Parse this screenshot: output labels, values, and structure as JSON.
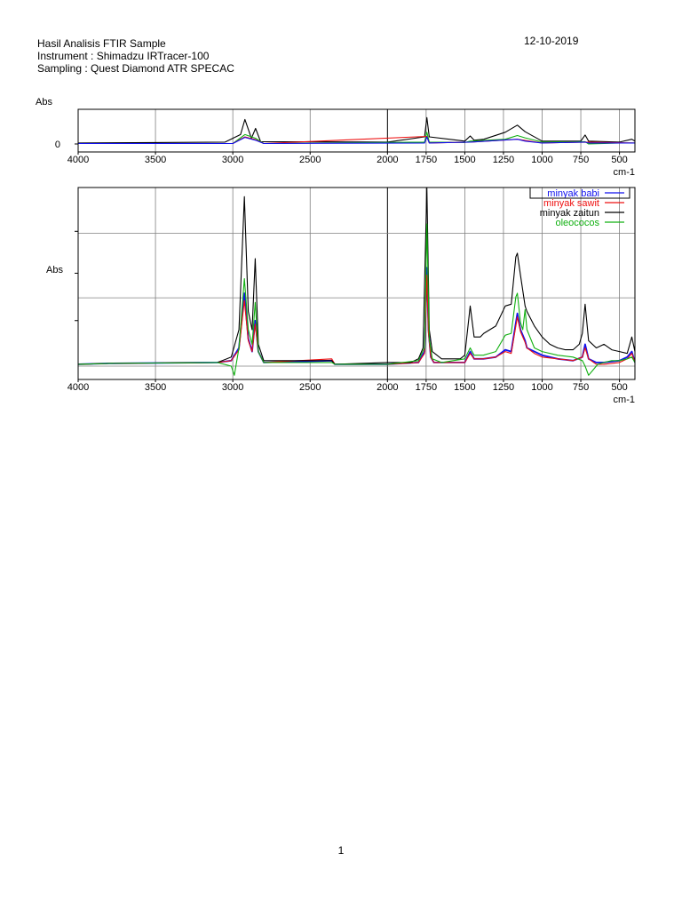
{
  "header": {
    "title": "Hasil Analisis FTIR Sample",
    "instrument": "Instrument : Shimadzu IRTracer-100",
    "sampling": "Sampling : Quest Diamond ATR SPECAC",
    "date": "12-10-2019"
  },
  "footer": {
    "page_number": "1"
  },
  "colors": {
    "minyak_babi": "#1010ee",
    "minyak_sawit": "#ee1010",
    "minyak_zaitun": "#000000",
    "oleococos": "#10b010",
    "grid": "#808080"
  },
  "chart_data": [
    {
      "type": "line",
      "ylabel": "Abs",
      "xlabel": "cm-1",
      "xlim": [
        4000,
        400
      ],
      "x_reversed": true,
      "x_ticks": [
        "4000",
        "3500",
        "3000",
        "2500",
        "2000",
        "1750",
        "1500",
        "1250",
        "1000",
        "750",
        "500"
      ],
      "y_ticks": [
        "0"
      ],
      "grid": true,
      "legend": false,
      "series": [
        {
          "key": "minyak_zaitun",
          "points": [
            [
              4000,
              0.02
            ],
            [
              3500,
              0.03
            ],
            [
              3050,
              0.04
            ],
            [
              2950,
              0.2
            ],
            [
              2922,
              0.52
            ],
            [
              2880,
              0.12
            ],
            [
              2853,
              0.33
            ],
            [
              2820,
              0.05
            ],
            [
              2000,
              0.04
            ],
            [
              1760,
              0.15
            ],
            [
              1745,
              0.56
            ],
            [
              1730,
              0.15
            ],
            [
              1500,
              0.06
            ],
            [
              1465,
              0.17
            ],
            [
              1440,
              0.08
            ],
            [
              1377,
              0.1
            ],
            [
              1238,
              0.25
            ],
            [
              1160,
              0.4
            ],
            [
              1110,
              0.26
            ],
            [
              1000,
              0.06
            ],
            [
              750,
              0.06
            ],
            [
              722,
              0.19
            ],
            [
              700,
              0.06
            ],
            [
              500,
              0.04
            ],
            [
              420,
              0.1
            ],
            [
              400,
              0.06
            ]
          ]
        },
        {
          "key": "oleococos",
          "points": [
            [
              4000,
              0.01
            ],
            [
              3000,
              0.01
            ],
            [
              2922,
              0.2
            ],
            [
              2853,
              0.12
            ],
            [
              2800,
              0.01
            ],
            [
              1760,
              0.04
            ],
            [
              1745,
              0.25
            ],
            [
              1730,
              0.04
            ],
            [
              1500,
              0.03
            ],
            [
              1465,
              0.06
            ],
            [
              1238,
              0.1
            ],
            [
              1160,
              0.18
            ],
            [
              1110,
              0.13
            ],
            [
              1000,
              0.04
            ],
            [
              722,
              0.05
            ],
            [
              700,
              0.0
            ],
            [
              500,
              0.02
            ],
            [
              400,
              0.02
            ]
          ]
        },
        {
          "key": "minyak_sawit",
          "points": [
            [
              4000,
              0.01
            ],
            [
              3000,
              0.01
            ],
            [
              2922,
              0.15
            ],
            [
              2853,
              0.09
            ],
            [
              2800,
              0.01
            ],
            [
              1745,
              0.16
            ],
            [
              1730,
              0.02
            ],
            [
              1465,
              0.04
            ],
            [
              1160,
              0.1
            ],
            [
              1000,
              0.02
            ],
            [
              722,
              0.04
            ],
            [
              400,
              0.02
            ]
          ]
        },
        {
          "key": "minyak_babi",
          "points": [
            [
              4000,
              0.01
            ],
            [
              3000,
              0.01
            ],
            [
              2922,
              0.14
            ],
            [
              2853,
              0.08
            ],
            [
              2800,
              0.01
            ],
            [
              1760,
              0.02
            ],
            [
              1745,
              0.15
            ],
            [
              1730,
              0.02
            ],
            [
              1465,
              0.04
            ],
            [
              1160,
              0.1
            ],
            [
              1110,
              0.06
            ],
            [
              1000,
              0.02
            ],
            [
              722,
              0.04
            ],
            [
              700,
              0.02
            ],
            [
              400,
              0.02
            ]
          ]
        }
      ]
    },
    {
      "type": "line",
      "ylabel": "Abs",
      "xlabel": "cm-1",
      "xlim": [
        4000,
        400
      ],
      "x_reversed": true,
      "x_ticks": [
        "4000",
        "3500",
        "3000",
        "2500",
        "2000",
        "1750",
        "1500",
        "1250",
        "1000",
        "750",
        "500"
      ],
      "grid": true,
      "legend": true,
      "legend_position": "top-right",
      "series": [
        {
          "key": "minyak_babi",
          "name": "minyak babi",
          "points": [
            [
              4000,
              0.01
            ],
            [
              3800,
              0.015
            ],
            [
              3100,
              0.02
            ],
            [
              3010,
              0.03
            ],
            [
              2960,
              0.1
            ],
            [
              2925,
              0.4
            ],
            [
              2900,
              0.15
            ],
            [
              2875,
              0.08
            ],
            [
              2855,
              0.25
            ],
            [
              2835,
              0.08
            ],
            [
              2800,
              0.02
            ],
            [
              2360,
              0.03
            ],
            [
              2340,
              0.01
            ],
            [
              2000,
              0.01
            ],
            [
              1800,
              0.02
            ],
            [
              1760,
              0.08
            ],
            [
              1745,
              0.54
            ],
            [
              1735,
              0.2
            ],
            [
              1720,
              0.05
            ],
            [
              1700,
              0.02
            ],
            [
              1500,
              0.02
            ],
            [
              1465,
              0.08
            ],
            [
              1440,
              0.04
            ],
            [
              1380,
              0.04
            ],
            [
              1300,
              0.05
            ],
            [
              1238,
              0.09
            ],
            [
              1200,
              0.08
            ],
            [
              1160,
              0.29
            ],
            [
              1140,
              0.2
            ],
            [
              1110,
              0.14
            ],
            [
              1098,
              0.1
            ],
            [
              1050,
              0.08
            ],
            [
              1000,
              0.06
            ],
            [
              900,
              0.04
            ],
            [
              800,
              0.03
            ],
            [
              740,
              0.05
            ],
            [
              722,
              0.12
            ],
            [
              700,
              0.04
            ],
            [
              650,
              0.02
            ],
            [
              600,
              0.02
            ],
            [
              500,
              0.03
            ],
            [
              450,
              0.05
            ],
            [
              420,
              0.08
            ],
            [
              400,
              0.02
            ]
          ]
        },
        {
          "key": "minyak_sawit",
          "name": "minyak sawit",
          "points": [
            [
              4000,
              0.01
            ],
            [
              3800,
              0.015
            ],
            [
              3100,
              0.02
            ],
            [
              3010,
              0.03
            ],
            [
              2960,
              0.09
            ],
            [
              2925,
              0.36
            ],
            [
              2900,
              0.14
            ],
            [
              2875,
              0.08
            ],
            [
              2855,
              0.23
            ],
            [
              2835,
              0.08
            ],
            [
              2800,
              0.02
            ],
            [
              2360,
              0.04
            ],
            [
              2340,
              0.01
            ],
            [
              2000,
              0.01
            ],
            [
              1800,
              0.02
            ],
            [
              1760,
              0.07
            ],
            [
              1745,
              0.5
            ],
            [
              1735,
              0.18
            ],
            [
              1720,
              0.05
            ],
            [
              1700,
              0.02
            ],
            [
              1500,
              0.02
            ],
            [
              1465,
              0.07
            ],
            [
              1440,
              0.04
            ],
            [
              1380,
              0.04
            ],
            [
              1300,
              0.05
            ],
            [
              1238,
              0.08
            ],
            [
              1200,
              0.07
            ],
            [
              1160,
              0.27
            ],
            [
              1140,
              0.19
            ],
            [
              1110,
              0.13
            ],
            [
              1098,
              0.1
            ],
            [
              1050,
              0.07
            ],
            [
              1000,
              0.05
            ],
            [
              900,
              0.04
            ],
            [
              800,
              0.03
            ],
            [
              740,
              0.05
            ],
            [
              722,
              0.1
            ],
            [
              700,
              0.04
            ],
            [
              650,
              0.01
            ],
            [
              600,
              0.01
            ],
            [
              500,
              0.02
            ],
            [
              450,
              0.04
            ],
            [
              420,
              0.07
            ],
            [
              400,
              0.02
            ]
          ]
        },
        {
          "key": "minyak_zaitun",
          "name": "minyak zaitun",
          "points": [
            [
              4000,
              0.01
            ],
            [
              3800,
              0.015
            ],
            [
              3100,
              0.02
            ],
            [
              3010,
              0.05
            ],
            [
              2960,
              0.2
            ],
            [
              2925,
              0.93
            ],
            [
              2900,
              0.3
            ],
            [
              2875,
              0.2
            ],
            [
              2855,
              0.59
            ],
            [
              2835,
              0.12
            ],
            [
              2800,
              0.03
            ],
            [
              2360,
              0.03
            ],
            [
              2340,
              0.01
            ],
            [
              2000,
              0.02
            ],
            [
              1850,
              0.02
            ],
            [
              1800,
              0.04
            ],
            [
              1770,
              0.1
            ],
            [
              1745,
              0.98
            ],
            [
              1730,
              0.2
            ],
            [
              1710,
              0.08
            ],
            [
              1650,
              0.04
            ],
            [
              1600,
              0.04
            ],
            [
              1530,
              0.04
            ],
            [
              1500,
              0.06
            ],
            [
              1465,
              0.33
            ],
            [
              1440,
              0.16
            ],
            [
              1400,
              0.16
            ],
            [
              1377,
              0.18
            ],
            [
              1300,
              0.22
            ],
            [
              1238,
              0.33
            ],
            [
              1200,
              0.34
            ],
            [
              1170,
              0.6
            ],
            [
              1160,
              0.62
            ],
            [
              1140,
              0.5
            ],
            [
              1110,
              0.33
            ],
            [
              1098,
              0.3
            ],
            [
              1050,
              0.22
            ],
            [
              1000,
              0.16
            ],
            [
              950,
              0.12
            ],
            [
              900,
              0.1
            ],
            [
              850,
              0.09
            ],
            [
              800,
              0.09
            ],
            [
              760,
              0.12
            ],
            [
              740,
              0.18
            ],
            [
              722,
              0.34
            ],
            [
              700,
              0.14
            ],
            [
              650,
              0.1
            ],
            [
              600,
              0.12
            ],
            [
              550,
              0.09
            ],
            [
              500,
              0.08
            ],
            [
              450,
              0.07
            ],
            [
              420,
              0.16
            ],
            [
              400,
              0.08
            ]
          ]
        },
        {
          "key": "oleococos",
          "name": "oleococos",
          "points": [
            [
              4000,
              0.01
            ],
            [
              3800,
              0.015
            ],
            [
              3100,
              0.02
            ],
            [
              3010,
              0.0
            ],
            [
              2990,
              -0.05
            ],
            [
              2960,
              0.1
            ],
            [
              2925,
              0.48
            ],
            [
              2900,
              0.2
            ],
            [
              2875,
              0.12
            ],
            [
              2855,
              0.35
            ],
            [
              2835,
              0.08
            ],
            [
              2800,
              0.02
            ],
            [
              2360,
              0.02
            ],
            [
              2340,
              0.01
            ],
            [
              2000,
              0.01
            ],
            [
              1800,
              0.03
            ],
            [
              1760,
              0.1
            ],
            [
              1745,
              0.78
            ],
            [
              1730,
              0.15
            ],
            [
              1710,
              0.04
            ],
            [
              1650,
              0.02
            ],
            [
              1500,
              0.04
            ],
            [
              1465,
              0.1
            ],
            [
              1440,
              0.06
            ],
            [
              1380,
              0.06
            ],
            [
              1300,
              0.08
            ],
            [
              1238,
              0.17
            ],
            [
              1200,
              0.18
            ],
            [
              1170,
              0.38
            ],
            [
              1160,
              0.4
            ],
            [
              1140,
              0.24
            ],
            [
              1125,
              0.2
            ],
            [
              1110,
              0.31
            ],
            [
              1098,
              0.2
            ],
            [
              1050,
              0.1
            ],
            [
              1000,
              0.08
            ],
            [
              900,
              0.06
            ],
            [
              800,
              0.05
            ],
            [
              740,
              0.03
            ],
            [
              722,
              0.0
            ],
            [
              700,
              -0.05
            ],
            [
              670,
              -0.02
            ],
            [
              640,
              0.01
            ],
            [
              600,
              0.02
            ],
            [
              550,
              0.03
            ],
            [
              500,
              0.03
            ],
            [
              450,
              0.04
            ],
            [
              420,
              0.05
            ],
            [
              400,
              0.02
            ]
          ]
        }
      ]
    }
  ]
}
